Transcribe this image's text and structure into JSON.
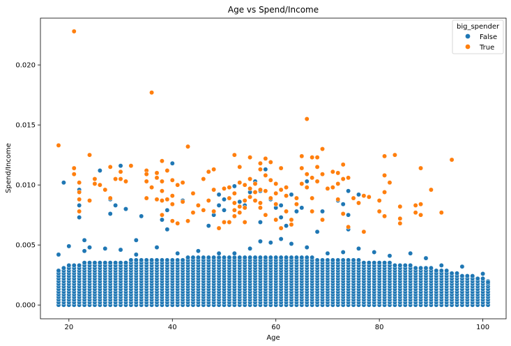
{
  "chart_data": {
    "type": "scatter",
    "title": "Age vs Spend/Income",
    "xlabel": "Age",
    "ylabel": "Spend/Income",
    "xlim": [
      14.5,
      104.5
    ],
    "ylim": [
      -0.00115,
      0.0239
    ],
    "x_ticks": [
      20,
      40,
      60,
      80,
      100
    ],
    "x_tick_labels": [
      "20",
      "40",
      "60",
      "80",
      "100"
    ],
    "y_ticks": [
      0.0,
      0.005,
      0.01,
      0.015,
      0.02
    ],
    "y_tick_labels": [
      "0.000",
      "0.005",
      "0.010",
      "0.015",
      "0.020"
    ],
    "grid": false,
    "legend": {
      "title": "big_spender",
      "placement": "top-right",
      "entries": [
        {
          "label": "False",
          "color": "#1f77b4"
        },
        {
          "label": "True",
          "color": "#ff7f0e"
        }
      ]
    },
    "series": [
      {
        "name": "False",
        "color": "#1f77b4",
        "points": [
          [
            19,
            0.0102
          ],
          [
            22,
            0.0096
          ],
          [
            22,
            0.0083
          ],
          [
            22,
            0.0073
          ],
          [
            23,
            0.0054
          ],
          [
            26,
            0.0112
          ],
          [
            28,
            0.0088
          ],
          [
            28,
            0.0076
          ],
          [
            29,
            0.0083
          ],
          [
            30,
            0.0116
          ],
          [
            31,
            0.008
          ],
          [
            33,
            0.0054
          ],
          [
            34,
            0.0074
          ],
          [
            38,
            0.0071
          ],
          [
            39,
            0.0079
          ],
          [
            39,
            0.0063
          ],
          [
            40,
            0.0118
          ],
          [
            42,
            0.0087
          ],
          [
            47,
            0.0066
          ],
          [
            48,
            0.0075
          ],
          [
            49,
            0.0092
          ],
          [
            49,
            0.0083
          ],
          [
            50,
            0.0088
          ],
          [
            50,
            0.0079
          ],
          [
            52,
            0.0099
          ],
          [
            53,
            0.0086
          ],
          [
            54,
            0.0083
          ],
          [
            55,
            0.0094
          ],
          [
            56,
            0.0103
          ],
          [
            56,
            0.0087
          ],
          [
            57,
            0.0095
          ],
          [
            57,
            0.0069
          ],
          [
            58,
            0.0113
          ],
          [
            59,
            0.0088
          ],
          [
            60,
            0.0081
          ],
          [
            61,
            0.0073
          ],
          [
            61,
            0.0083
          ],
          [
            62,
            0.0066
          ],
          [
            63,
            0.0092
          ],
          [
            64,
            0.0078
          ],
          [
            65,
            0.0081
          ],
          [
            66,
            0.0103
          ],
          [
            68,
            0.0061
          ],
          [
            69,
            0.0078
          ],
          [
            72,
            0.0087
          ],
          [
            73,
            0.0084
          ],
          [
            74,
            0.0095
          ],
          [
            74,
            0.0075
          ],
          [
            74,
            0.0063
          ],
          [
            76,
            0.0092
          ],
          [
            18,
            0.0042
          ],
          [
            20,
            0.0049
          ],
          [
            23,
            0.0045
          ],
          [
            24,
            0.0048
          ],
          [
            27,
            0.0047
          ],
          [
            30,
            0.0046
          ],
          [
            33,
            0.0042
          ],
          [
            37,
            0.0048
          ],
          [
            41,
            0.0043
          ],
          [
            45,
            0.0045
          ],
          [
            49,
            0.0043
          ],
          [
            52,
            0.0043
          ],
          [
            55,
            0.0047
          ],
          [
            57,
            0.0053
          ],
          [
            59,
            0.0052
          ],
          [
            61,
            0.0055
          ],
          [
            63,
            0.0051
          ],
          [
            66,
            0.0048
          ],
          [
            70,
            0.0043
          ],
          [
            73,
            0.0044
          ],
          [
            76,
            0.0047
          ],
          [
            79,
            0.0044
          ],
          [
            82,
            0.0041
          ],
          [
            86,
            0.0043
          ],
          [
            89,
            0.0039
          ],
          [
            92,
            0.0033
          ],
          [
            96,
            0.0032
          ],
          [
            100,
            0.0026
          ],
          [
            101,
            0.0019
          ]
        ],
        "dense_band": {
          "x_range": [
            18,
            101
          ],
          "x_step": 1,
          "y_max_by_age": {
            "18": 0.0029,
            "20": 0.0034,
            "25": 0.0036,
            "30": 0.0037,
            "35": 0.0038,
            "40": 0.0039,
            "45": 0.004,
            "50": 0.004,
            "55": 0.004,
            "60": 0.004,
            "65": 0.004,
            "70": 0.0039,
            "75": 0.0038,
            "80": 0.0036,
            "85": 0.0034,
            "90": 0.0031,
            "95": 0.0027,
            "100": 0.0023,
            "101": 0.0021
          },
          "y_min": 0.0,
          "y_step": 0.00022
        }
      },
      {
        "name": "True",
        "color": "#ff7f0e",
        "points": [
          [
            18,
            0.0133
          ],
          [
            21,
            0.0228
          ],
          [
            21,
            0.0114
          ],
          [
            21,
            0.0109
          ],
          [
            22,
            0.0102
          ],
          [
            22,
            0.0094
          ],
          [
            22,
            0.0088
          ],
          [
            22,
            0.0078
          ],
          [
            24,
            0.0125
          ],
          [
            24,
            0.0087
          ],
          [
            25,
            0.0105
          ],
          [
            25,
            0.0101
          ],
          [
            26,
            0.01
          ],
          [
            27,
            0.0096
          ],
          [
            28,
            0.0115
          ],
          [
            28,
            0.0089
          ],
          [
            29,
            0.0105
          ],
          [
            30,
            0.0111
          ],
          [
            30,
            0.0105
          ],
          [
            31,
            0.0103
          ],
          [
            32,
            0.0116
          ],
          [
            36,
            0.0177
          ],
          [
            35,
            0.0112
          ],
          [
            35,
            0.0109
          ],
          [
            35,
            0.0103
          ],
          [
            35,
            0.0089
          ],
          [
            36,
            0.0098
          ],
          [
            37,
            0.011
          ],
          [
            37,
            0.0106
          ],
          [
            37,
            0.0088
          ],
          [
            38,
            0.012
          ],
          [
            38,
            0.0103
          ],
          [
            38,
            0.0095
          ],
          [
            38,
            0.0087
          ],
          [
            38,
            0.0075
          ],
          [
            39,
            0.0112
          ],
          [
            39,
            0.0088
          ],
          [
            40,
            0.0104
          ],
          [
            40,
            0.0091
          ],
          [
            40,
            0.0084
          ],
          [
            40,
            0.007
          ],
          [
            41,
            0.01
          ],
          [
            41,
            0.0068
          ],
          [
            42,
            0.0102
          ],
          [
            42,
            0.0086
          ],
          [
            43,
            0.0132
          ],
          [
            43,
            0.007
          ],
          [
            44,
            0.0093
          ],
          [
            44,
            0.0077
          ],
          [
            45,
            0.0083
          ],
          [
            46,
            0.0105
          ],
          [
            46,
            0.0079
          ],
          [
            47,
            0.0111
          ],
          [
            47,
            0.0087
          ],
          [
            48,
            0.0113
          ],
          [
            48,
            0.0096
          ],
          [
            48,
            0.0078
          ],
          [
            49,
            0.0064
          ],
          [
            50,
            0.0097
          ],
          [
            50,
            0.0069
          ],
          [
            51,
            0.0098
          ],
          [
            51,
            0.0089
          ],
          [
            51,
            0.0069
          ],
          [
            52,
            0.0125
          ],
          [
            52,
            0.0093
          ],
          [
            52,
            0.0085
          ],
          [
            52,
            0.0079
          ],
          [
            52,
            0.0074
          ],
          [
            53,
            0.0115
          ],
          [
            53,
            0.0102
          ],
          [
            53,
            0.0082
          ],
          [
            53,
            0.0077
          ],
          [
            54,
            0.01
          ],
          [
            54,
            0.0087
          ],
          [
            54,
            0.0081
          ],
          [
            54,
            0.0069
          ],
          [
            55,
            0.0123
          ],
          [
            55,
            0.0105
          ],
          [
            55,
            0.0097
          ],
          [
            55,
            0.009
          ],
          [
            56,
            0.0101
          ],
          [
            56,
            0.0094
          ],
          [
            56,
            0.0087
          ],
          [
            57,
            0.0118
          ],
          [
            57,
            0.0113
          ],
          [
            57,
            0.0096
          ],
          [
            57,
            0.0085
          ],
          [
            57,
            0.0081
          ],
          [
            58,
            0.0122
          ],
          [
            58,
            0.0108
          ],
          [
            58,
            0.0095
          ],
          [
            58,
            0.0075
          ],
          [
            59,
            0.0119
          ],
          [
            59,
            0.0104
          ],
          [
            59,
            0.0089
          ],
          [
            60,
            0.0101
          ],
          [
            60,
            0.0093
          ],
          [
            60,
            0.0084
          ],
          [
            60,
            0.0071
          ],
          [
            61,
            0.0114
          ],
          [
            61,
            0.0096
          ],
          [
            61,
            0.0064
          ],
          [
            62,
            0.0098
          ],
          [
            62,
            0.0091
          ],
          [
            62,
            0.0078
          ],
          [
            63,
            0.0071
          ],
          [
            63,
            0.0067
          ],
          [
            64,
            0.0089
          ],
          [
            64,
            0.0084
          ],
          [
            65,
            0.0124
          ],
          [
            65,
            0.0114
          ],
          [
            65,
            0.0101
          ],
          [
            66,
            0.0155
          ],
          [
            66,
            0.0109
          ],
          [
            66,
            0.0098
          ],
          [
            67,
            0.0123
          ],
          [
            67,
            0.0106
          ],
          [
            67,
            0.0089
          ],
          [
            67,
            0.0078
          ],
          [
            68,
            0.0123
          ],
          [
            68,
            0.0115
          ],
          [
            68,
            0.0103
          ],
          [
            69,
            0.013
          ],
          [
            69,
            0.0109
          ],
          [
            69,
            0.0071
          ],
          [
            70,
            0.0097
          ],
          [
            71,
            0.0111
          ],
          [
            71,
            0.0098
          ],
          [
            72,
            0.011
          ],
          [
            72,
            0.0101
          ],
          [
            72,
            0.0088
          ],
          [
            73,
            0.0117
          ],
          [
            73,
            0.0105
          ],
          [
            73,
            0.0076
          ],
          [
            74,
            0.0106
          ],
          [
            74,
            0.0065
          ],
          [
            75,
            0.0089
          ],
          [
            76,
            0.0085
          ],
          [
            77,
            0.0091
          ],
          [
            77,
            0.0061
          ],
          [
            78,
            0.009
          ],
          [
            80,
            0.0087
          ],
          [
            80,
            0.0078
          ],
          [
            81,
            0.0124
          ],
          [
            81,
            0.0108
          ],
          [
            81,
            0.0094
          ],
          [
            81,
            0.0074
          ],
          [
            82,
            0.0102
          ],
          [
            83,
            0.0125
          ],
          [
            84,
            0.0082
          ],
          [
            84,
            0.0072
          ],
          [
            84,
            0.0068
          ],
          [
            87,
            0.0083
          ],
          [
            87,
            0.0077
          ],
          [
            88,
            0.0114
          ],
          [
            88,
            0.0084
          ],
          [
            88,
            0.0075
          ],
          [
            90,
            0.0096
          ],
          [
            92,
            0.0077
          ],
          [
            94,
            0.0121
          ]
        ]
      }
    ]
  }
}
